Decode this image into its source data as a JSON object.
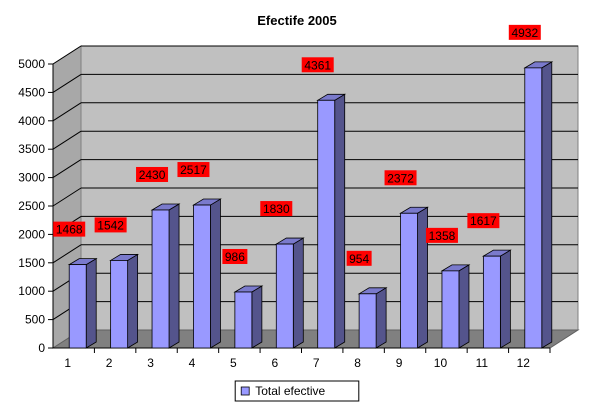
{
  "chart_data": {
    "type": "bar",
    "title": "Efectife 2005",
    "categories": [
      "1",
      "2",
      "3",
      "4",
      "5",
      "6",
      "7",
      "8",
      "9",
      "10",
      "11",
      "12"
    ],
    "series": [
      {
        "name": "Total efective",
        "values": [
          1468,
          1542,
          2430,
          2517,
          986,
          1830,
          4361,
          954,
          2372,
          1358,
          1617,
          4932
        ],
        "color": "#9999ff"
      }
    ],
    "ylim": [
      0,
      5000
    ],
    "yticks": [
      0,
      500,
      1000,
      1500,
      2000,
      2500,
      3000,
      3500,
      4000,
      4500,
      5000
    ],
    "grid": true,
    "legend_position": "bottom",
    "data_label_color": "#ff0000",
    "plot_wall_color": "#c0c0c0",
    "floor_color": "#808080"
  }
}
